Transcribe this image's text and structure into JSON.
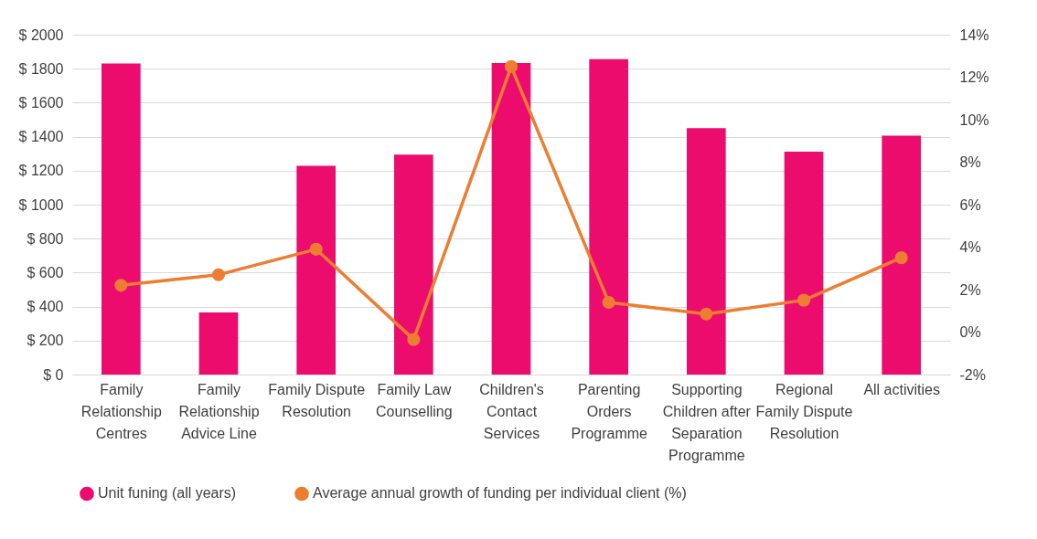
{
  "chart_data": {
    "type": "bar",
    "categories": [
      "Family Relationship Centres",
      "Family Relationship Advice Line",
      "Family Dispute Resolution",
      "Family Law Counselling",
      "Children's Contact Services",
      "Parenting Orders Programme",
      "Supporting Children after Separation Programme",
      "Regional Family Dispute Resolution",
      "All activities"
    ],
    "series": [
      {
        "name": "Unit funing (all years)",
        "color": "#ec0c6e",
        "values": [
          1830,
          366,
          1229,
          1294,
          1834,
          1856,
          1450,
          1312,
          1406
        ]
      },
      {
        "name": "Average annual growth of funding per individual client (%)",
        "type": "line",
        "axis": "y2",
        "color": "#ed7d31",
        "values": [
          2.2,
          2.7,
          3.9,
          -0.35,
          12.5,
          1.4,
          0.85,
          1.5,
          3.5
        ]
      }
    ],
    "ylim": [
      0,
      2000
    ],
    "yticks": [
      {
        "value": 0,
        "label": "$ 0"
      },
      {
        "value": 200,
        "label": "$ 200"
      },
      {
        "value": 400,
        "label": "$ 400"
      },
      {
        "value": 600,
        "label": "$ 600"
      },
      {
        "value": 800,
        "label": "$ 800"
      },
      {
        "value": 1000,
        "label": "$ 1000"
      },
      {
        "value": 1200,
        "label": "$ 1200"
      },
      {
        "value": 1400,
        "label": "$ 1400"
      },
      {
        "value": 1600,
        "label": "$ 1600"
      },
      {
        "value": 1800,
        "label": "$ 1800"
      },
      {
        "value": 2000,
        "label": "$ 2000"
      }
    ],
    "y2lim": [
      -2,
      14
    ],
    "y2ticks": [
      {
        "value": -2,
        "label": "-2%"
      },
      {
        "value": 0,
        "label": "0%"
      },
      {
        "value": 2,
        "label": "2%"
      },
      {
        "value": 4,
        "label": "4%"
      },
      {
        "value": 6,
        "label": "6%"
      },
      {
        "value": 8,
        "label": "8%"
      },
      {
        "value": 10,
        "label": "10%"
      },
      {
        "value": 12,
        "label": "12%"
      },
      {
        "value": 14,
        "label": "14%"
      }
    ],
    "grid": true,
    "legend": "bottom",
    "marker": "circle"
  }
}
